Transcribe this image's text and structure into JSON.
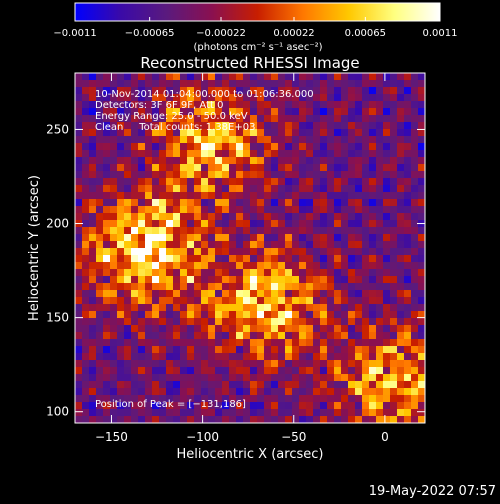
{
  "chart_data": {
    "type": "heatmap",
    "title": "Reconstructed RHESSI Image",
    "xlabel": "Heliocentric X (arcsec)",
    "ylabel": "Heliocentric Y (arcsec)",
    "xlim": [
      -170,
      22
    ],
    "ylim": [
      94,
      280
    ],
    "x_ticks": [
      {
        "value": -150,
        "label": "−150"
      },
      {
        "value": -100,
        "label": "−100"
      },
      {
        "value": -50,
        "label": "−50"
      },
      {
        "value": 0,
        "label": "0"
      }
    ],
    "y_ticks": [
      {
        "value": 100,
        "label": "100"
      },
      {
        "value": 150,
        "label": "150"
      },
      {
        "value": 200,
        "label": "200"
      },
      {
        "value": 250,
        "label": "250"
      }
    ],
    "sources": [
      {
        "x": -131,
        "y": 186
      },
      {
        "x": -95,
        "y": 245
      },
      {
        "x": -65,
        "y": 158
      },
      {
        "x": 5,
        "y": 115
      }
    ],
    "info_lines": [
      "10-Nov-2014 01:04:00.000 to 01:06:36.000",
      "Detectors: 3F 6F 9F, Att 0",
      "Energy Range: 25.0 - 50.0 keV",
      "Clean     Total counts: 1.38E+03"
    ],
    "peak_label": "Position of Peak = [−131,186]",
    "colorbar": {
      "min": -0.0011,
      "max": 0.0011,
      "ticks": [
        {
          "value": -0.0011,
          "label": "−0.0011"
        },
        {
          "value": -0.00065,
          "label": "−0.00065"
        },
        {
          "value": -0.00022,
          "label": "−0.00022"
        },
        {
          "value": 0.00022,
          "label": "0.00022"
        },
        {
          "value": 0.00065,
          "label": "0.00065"
        },
        {
          "value": 0.0011,
          "label": "0.0011"
        }
      ],
      "units_label": "(photons cm⁻² s⁻¹ asec⁻²)",
      "colors": [
        "#0000ff",
        "#3a0aa8",
        "#5a1a7e",
        "#8a1050",
        "#c81e00",
        "#ff7800",
        "#ffc800",
        "#ffff80",
        "#ffffff"
      ]
    },
    "grid": false
  },
  "timestamp": "19-May-2022 07:57"
}
